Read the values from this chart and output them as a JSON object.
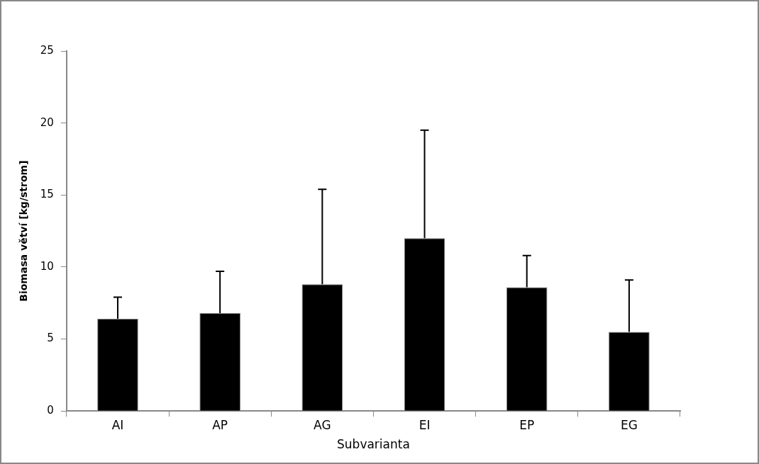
{
  "chart_data": {
    "type": "bar",
    "xlabel": "Subvarianta",
    "ylabel": "Biomasa větví [kg/strom]",
    "categories": [
      "AI",
      "AP",
      "AG",
      "EI",
      "EP",
      "EG"
    ],
    "values": [
      6.4,
      6.8,
      8.8,
      12.0,
      8.6,
      5.5
    ],
    "errors": [
      [
        6.4,
        7.9
      ],
      [
        6.8,
        9.7
      ],
      [
        8.8,
        15.4
      ],
      [
        12.0,
        19.5
      ],
      [
        8.6,
        10.8
      ],
      [
        5.5,
        9.1
      ]
    ],
    "color": "#000000",
    "ylim": [
      0,
      25
    ],
    "yticks": [
      0,
      5,
      10,
      15,
      20,
      25
    ],
    "grid": false,
    "legend": false
  }
}
